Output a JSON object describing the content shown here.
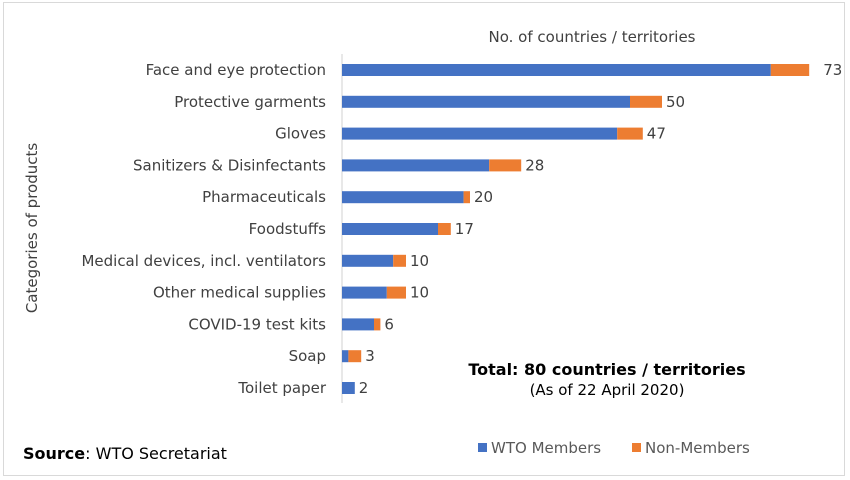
{
  "chart_data": {
    "type": "bar",
    "orientation": "horizontal",
    "stacked": true,
    "title": "No. of countries / territories",
    "ylabel": "Categories of products",
    "xlim": [
      0,
      80
    ],
    "grid": false,
    "legend_position": "bottom-right",
    "categories": [
      "Face and eye protection",
      "Protective garments",
      "Gloves",
      "Sanitizers & Disinfectants",
      "Pharmaceuticals",
      "Foodstuffs",
      "Medical devices, incl. ventilators",
      "Other medical supplies",
      "COVID-19 test kits",
      "Soap",
      "Toilet paper"
    ],
    "series": [
      {
        "name": "WTO Members",
        "color": "#4472C4",
        "values": [
          67,
          45,
          43,
          23,
          19,
          15,
          8,
          7,
          5,
          1,
          2
        ]
      },
      {
        "name": "Non-Members",
        "color": "#ED7D31",
        "values": [
          6,
          5,
          4,
          5,
          1,
          2,
          2,
          3,
          1,
          2,
          0
        ]
      }
    ],
    "totals": [
      "73",
      "50",
      "47",
      "28",
      "20",
      "17",
      "10",
      "10",
      "6",
      "3",
      "2"
    ],
    "annotation": {
      "total_text": "Total: 80 countries / territories",
      "date_text": "(As of 22 April 2020)"
    }
  },
  "source": {
    "label": "Source",
    "text": ": WTO Secretariat"
  }
}
